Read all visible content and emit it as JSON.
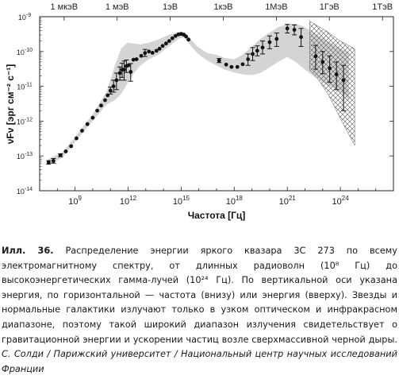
{
  "chart_data": {
    "type": "scatter",
    "title": "",
    "xlabel": "Частота [Гц]",
    "ylabel": "νFν [эрг см⁻² с⁻¹]",
    "x_scale": "log",
    "y_scale": "log",
    "xlim": [
      10000000.0,
      1e+27
    ],
    "ylim": [
      1e-14,
      1e-09
    ],
    "x_ticks": [
      {
        "value": 1000000000.0,
        "base": "10",
        "exp": "9"
      },
      {
        "value": 1000000000000.0,
        "base": "10",
        "exp": "12"
      },
      {
        "value": 1000000000000000.0,
        "base": "10",
        "exp": "15"
      },
      {
        "value": 1e+18,
        "base": "10",
        "exp": "18"
      },
      {
        "value": 1e+21,
        "base": "10",
        "exp": "21"
      },
      {
        "value": 1e+24,
        "base": "10",
        "exp": "24"
      }
    ],
    "y_ticks": [
      {
        "value": 1e-09,
        "base": "10",
        "exp": "-9"
      },
      {
        "value": 1e-10,
        "base": "10",
        "exp": "-10"
      },
      {
        "value": 1e-11,
        "base": "10",
        "exp": "-11"
      },
      {
        "value": 1e-12,
        "base": "10",
        "exp": "-12"
      },
      {
        "value": 1e-13,
        "base": "10",
        "exp": "-13"
      },
      {
        "value": 1e-14,
        "base": "10",
        "exp": "-14"
      }
    ],
    "top_axis_ticks": [
      {
        "label": "1 мкэВ",
        "freq": 240000000.0
      },
      {
        "label": "1 мэВ",
        "freq": 240000000000.0
      },
      {
        "label": "1эВ",
        "freq": 240000000000000.0
      },
      {
        "label": "1кэВ",
        "freq": 2.4e+17
      },
      {
        "label": "1МэВ",
        "freq": 2.4e+20
      },
      {
        "label": "1ГэВ",
        "freq": 2.4e+23
      },
      {
        "label": "1ТэВ",
        "freq": 2.4e+26
      }
    ],
    "grid": false,
    "series": [
      {
        "marker": "filled-circle",
        "color": "#111111",
        "points": [
          {
            "x": 32000000.0,
            "y": 6.5e-14,
            "lo": 5.8e-14,
            "hi": 7.3e-14
          },
          {
            "x": 60000000.0,
            "y": 7.2e-14,
            "lo": 6.2e-14,
            "hi": 8.4e-14
          },
          {
            "x": 150000000.0,
            "y": 1.05e-13,
            "lo": 9.5e-14,
            "hi": 1.15e-13
          },
          {
            "x": 300000000.0,
            "y": 1.35e-13
          },
          {
            "x": 600000000.0,
            "y": 1.9e-13
          },
          {
            "x": 1200000000.0,
            "y": 3.2e-13
          },
          {
            "x": 2500000000.0,
            "y": 5.3e-13
          },
          {
            "x": 5000000000.0,
            "y": 8.2e-13
          },
          {
            "x": 10000000000.0,
            "y": 1.25e-12
          },
          {
            "x": 18000000000.0,
            "y": 2e-12
          },
          {
            "x": 30000000000.0,
            "y": 2.8e-12
          },
          {
            "x": 50000000000.0,
            "y": 4e-12
          },
          {
            "x": 70000000000.0,
            "y": 5.5e-12
          },
          {
            "x": 100000000000.0,
            "y": 7.5e-12,
            "lo": 6e-12,
            "hi": 9.5e-12
          },
          {
            "x": 150000000000.0,
            "y": 1e-11,
            "lo": 6.8e-12,
            "hi": 1.5e-11
          },
          {
            "x": 220000000000.0,
            "y": 1.5e-11,
            "lo": 8e-12,
            "hi": 2.4e-11
          },
          {
            "x": 340000000000.0,
            "y": 2.4e-11,
            "lo": 1.5e-11,
            "hi": 3.6e-11
          },
          {
            "x": 460000000000.0,
            "y": 3e-11,
            "lo": 1.8e-11,
            "hi": 4.6e-11
          },
          {
            "x": 600000000000.0,
            "y": 3e-11,
            "lo": 1.5e-11,
            "hi": 5.3e-11
          },
          {
            "x": 800000000000.0,
            "y": 3.8e-11,
            "lo": 2.5e-11,
            "hi": 5.7e-11
          },
          {
            "x": 1050000000000.0,
            "y": 4e-11
          },
          {
            "x": 1400000000000.0,
            "y": 2.6e-11,
            "lo": 1.4e-11,
            "hi": 4.5e-11
          },
          {
            "x": 2000000000000.0,
            "y": 5.8e-11
          },
          {
            "x": 3000000000000.0,
            "y": 6e-11
          },
          {
            "x": 5500000000000.0,
            "y": 7.5e-11
          },
          {
            "x": 9000000000000.0,
            "y": 9e-11,
            "lo": 7.2e-11,
            "hi": 1.15e-10
          },
          {
            "x": 15000000000000.0,
            "y": 1e-10
          },
          {
            "x": 24000000000000.0,
            "y": 9.2e-11
          },
          {
            "x": 40000000000000.0,
            "y": 1.05e-10
          },
          {
            "x": 60000000000000.0,
            "y": 1.2e-10
          },
          {
            "x": 90000000000000.0,
            "y": 1.45e-10
          },
          {
            "x": 140000000000000.0,
            "y": 1.7e-10
          },
          {
            "x": 210000000000000.0,
            "y": 2e-10
          },
          {
            "x": 320000000000000.0,
            "y": 2.4e-10
          },
          {
            "x": 480000000000000.0,
            "y": 2.8e-10
          },
          {
            "x": 700000000000000.0,
            "y": 3.1e-10
          },
          {
            "x": 1000000000000000.0,
            "y": 3.2e-10
          },
          {
            "x": 1400000000000000.0,
            "y": 3.05e-10
          },
          {
            "x": 1900000000000000.0,
            "y": 2.7e-10
          },
          {
            "x": 2600000000000000.0,
            "y": 2.2e-10
          },
          {
            "x": 1.4e+17,
            "y": 5.5e-11,
            "lo": 4.8e-11,
            "hi": 6.3e-11
          },
          {
            "x": 3.5e+17,
            "y": 4.2e-11
          },
          {
            "x": 7e+17,
            "y": 3.6e-11
          },
          {
            "x": 1.5e+18,
            "y": 3.6e-11
          },
          {
            "x": 3e+18,
            "y": 4.3e-11
          },
          {
            "x": 6e+18,
            "y": 6e-11,
            "lo": 4e-11,
            "hi": 8.5e-11
          },
          {
            "x": 1.1e+19,
            "y": 8.5e-11,
            "lo": 5.5e-11,
            "hi": 1.3e-10
          },
          {
            "x": 2e+19,
            "y": 1.05e-10,
            "lo": 7.5e-11,
            "hi": 1.45e-10
          },
          {
            "x": 4e+19,
            "y": 1.3e-10,
            "lo": 8.5e-11,
            "hi": 2e-10
          },
          {
            "x": 1e+20,
            "y": 1.85e-10,
            "lo": 1.2e-10,
            "hi": 2.8e-10
          },
          {
            "x": 2.5e+20,
            "y": 2.3e-10,
            "lo": 1.4e-10,
            "hi": 3.4e-10
          },
          {
            "x": 1e+21,
            "y": 4.6e-10,
            "lo": 3.4e-10,
            "hi": 6e-10
          },
          {
            "x": 2.5e+21,
            "y": 4.2e-10,
            "lo": 3e-10,
            "hi": 5.8e-10
          },
          {
            "x": 6e+21,
            "y": 2.6e-10,
            "lo": 1.4e-10,
            "hi": 4.6e-10
          },
          {
            "x": 4e+22,
            "y": 7.3e-11,
            "lo": 3.1e-11,
            "hi": 1.5e-10
          },
          {
            "x": 1e+23,
            "y": 5e-11,
            "lo": 2.3e-11,
            "hi": 1e-10
          },
          {
            "x": 2.5e+23,
            "y": 3.3e-11,
            "lo": 1.3e-11,
            "hi": 7.5e-11
          },
          {
            "x": 6e+23,
            "y": 2.2e-11,
            "lo": 8e-12,
            "hi": 5e-11
          },
          {
            "x": 1.5e+24,
            "y": 1.5e-11,
            "lo": 2e-12,
            "hi": 4e-11
          }
        ]
      }
    ],
    "shaded_band": {
      "color": "#d4d4d4",
      "upper": [
        [
          30000000.0,
          8e-14
        ],
        [
          200000000.0,
          1.3e-13
        ],
        [
          1000000000.0,
          3.5e-13
        ],
        [
          10000000000.0,
          1.6e-12
        ],
        [
          60000000000.0,
          7e-12
        ],
        [
          180000000000.0,
          4e-11
        ],
        [
          400000000000.0,
          1.2e-10
        ],
        [
          900000000000.0,
          1.8e-10
        ],
        [
          2000000000000.0,
          1.7e-10
        ],
        [
          5000000000000.0,
          1.6e-10
        ],
        [
          15000000000000.0,
          1.8e-10
        ],
        [
          50000000000000.0,
          2.2e-10
        ],
        [
          200000000000000.0,
          3e-10
        ],
        [
          800000000000000.0,
          3.7e-10
        ],
        [
          1500000000000000.0,
          3.6e-10
        ],
        [
          3000000000000000.0,
          2.5e-10
        ],
        [
          8000000000000000.0,
          1.4e-10
        ],
        [
          3e+16,
          9e-11
        ],
        [
          1e+17,
          8e-11
        ],
        [
          3e+17,
          6.5e-11
        ],
        [
          1e+18,
          6e-11
        ],
        [
          3e+18,
          8e-11
        ],
        [
          1e+19,
          1.4e-10
        ],
        [
          3e+19,
          2.3e-10
        ],
        [
          1e+20,
          3.5e-10
        ],
        [
          3e+20,
          5e-10
        ],
        [
          1e+21,
          6.2e-10
        ],
        [
          3e+21,
          6.3e-10
        ],
        [
          1e+22,
          5e-10
        ],
        [
          3e+22,
          3.5e-10
        ],
        [
          1e+23,
          2.4e-10
        ],
        [
          4e+23,
          1.6e-10
        ],
        [
          1.5e+24,
          1.1e-10
        ],
        [
          3e+24,
          9e-11
        ]
      ],
      "lower": [
        [
          3e+24,
          4e-12
        ],
        [
          1.5e+24,
          6e-12
        ],
        [
          4e+23,
          9e-12
        ],
        [
          1e+23,
          1.3e-11
        ],
        [
          3e+22,
          2e-11
        ],
        [
          1e+22,
          3e-11
        ],
        [
          3e+21,
          5e-11
        ],
        [
          1e+21,
          7e-11
        ],
        [
          3e+20,
          5e-11
        ],
        [
          1e+20,
          3.5e-11
        ],
        [
          3e+19,
          2.4e-11
        ],
        [
          1e+19,
          2.1e-11
        ],
        [
          3e+18,
          2.2e-11
        ],
        [
          1e+18,
          2.5e-11
        ],
        [
          3e+17,
          3e-11
        ],
        [
          1e+17,
          4e-11
        ],
        [
          3e+16,
          5.5e-11
        ],
        [
          8000000000000000.0,
          9e-11
        ],
        [
          3000000000000000.0,
          1.6e-10
        ],
        [
          1500000000000000.0,
          2.5e-10
        ],
        [
          800000000000000.0,
          2.4e-10
        ],
        [
          200000000000000.0,
          1.4e-10
        ],
        [
          50000000000000.0,
          8e-11
        ],
        [
          15000000000000.0,
          6e-11
        ],
        [
          5000000000000.0,
          4e-11
        ],
        [
          2000000000000.0,
          2.3e-11
        ],
        [
          900000000000.0,
          1.2e-11
        ],
        [
          400000000000.0,
          6e-12
        ],
        [
          180000000000.0,
          4e-12
        ],
        [
          60000000000.0,
          3e-12
        ],
        [
          10000000000.0,
          1e-12
        ],
        [
          1000000000.0,
          2.5e-13
        ],
        [
          200000000.0,
          9e-14
        ],
        [
          30000000.0,
          5.5e-14
        ]
      ]
    },
    "hatched_region": {
      "pattern": "crosshatch",
      "polygon": [
        [
          1.8e+22,
          7.5e-10
        ],
        [
          1.5e+23,
          4e-10
        ],
        [
          1e+24,
          2e-10
        ],
        [
          6.5e+24,
          1.2e-10
        ],
        [
          6.5e+24,
          2e-13
        ],
        [
          2e+24,
          6e-13
        ],
        [
          6e+23,
          2e-12
        ],
        [
          2e+23,
          6e-12
        ],
        [
          6e+22,
          1.5e-11
        ],
        [
          1.8e+22,
          3e-11
        ]
      ]
    }
  },
  "caption": {
    "label": "Илл. 36.",
    "text": "Распределение энергии яркого квазара 3C 273 по всему электромагнитному спектру, от длинных радиоволн (10⁸ Гц) до высокоэнергетических гамма-лучей (10²⁴ Гц). По вертикальной оси указана энергия, по горизонтальной — частота (внизу) или энергия (вверху). Звезды и нормальные галактики излучают только в узком оптическом и инфракрасном диапазоне, поэтому такой широкий диапазон излучения свидетельствует о гравитационной энергии и ускорении частиц возле сверхмассивной черной дыры.",
    "credit": "С. Солди / Парижский университет / Национальный центр научных исследований Франции"
  }
}
